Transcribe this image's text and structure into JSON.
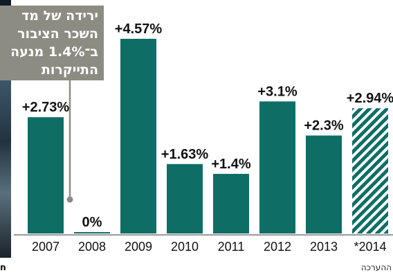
{
  "callout": {
    "lines": [
      "ירידה של מד",
      "השכר הציבור",
      "ב־1.4% מנעה",
      "התייקרות"
    ]
  },
  "footer": {
    "left": "ח",
    "right": "ההערכה"
  },
  "colors": {
    "bar": "#0e6e66",
    "callout_bg": "#8c8c82",
    "text": "#111111"
  },
  "chart_data": {
    "type": "bar",
    "title": "",
    "xlabel": "",
    "ylabel": "",
    "categories": [
      "2007",
      "2008",
      "2009",
      "2010",
      "2011",
      "2012",
      "2013",
      "*2014"
    ],
    "values": [
      2.73,
      0,
      4.57,
      1.63,
      1.4,
      3.1,
      2.3,
      2.94
    ],
    "labels": [
      "+2.73%",
      "0%",
      "+4.57%",
      "+1.63%",
      "+1.4%",
      "+3.1%",
      "+2.3%",
      "+2.94%"
    ],
    "hatched": [
      false,
      false,
      false,
      false,
      false,
      false,
      false,
      true
    ],
    "ylim": [
      0,
      4.57
    ],
    "grid": false
  }
}
